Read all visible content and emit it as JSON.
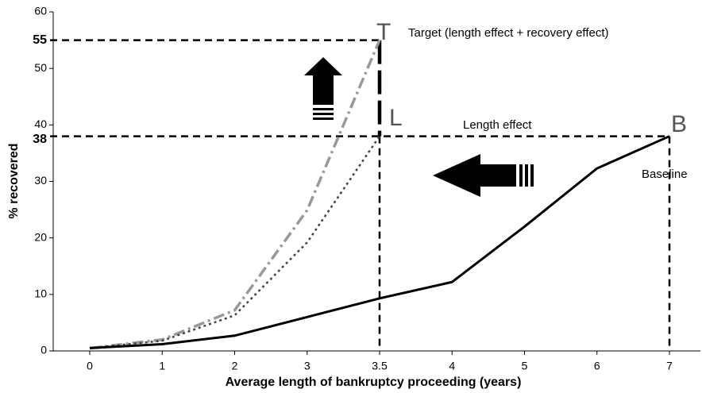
{
  "chart_data": {
    "type": "line",
    "x_label": "Average length of bankruptcy proceeding (years)",
    "y_label": "% recovered",
    "categories": [
      "0",
      "1",
      "2",
      "3",
      "3.5",
      "4",
      "5",
      "6",
      "7"
    ],
    "series": [
      {
        "name": "Baseline",
        "color": "#000000",
        "style": "solid",
        "values": [
          0.5,
          1.2,
          2.7,
          6,
          9.3,
          12.2,
          22,
          32.3,
          38
        ]
      },
      {
        "name": "Length effect",
        "color": "#444444",
        "style": "dotted",
        "values": [
          0.5,
          1.8,
          6.3,
          19.2,
          38,
          null,
          null,
          null,
          null
        ]
      },
      {
        "name": "Target (length effect + recovery effect)",
        "color": "#999999",
        "style": "dashdot",
        "values": [
          0.5,
          2,
          7.2,
          24.9,
          55,
          null,
          null,
          null,
          null
        ]
      }
    ],
    "guides": [
      {
        "value": 55,
        "to": "3.5"
      },
      {
        "value": 38,
        "to": "7"
      }
    ],
    "letters": [
      "T",
      "L",
      "B"
    ],
    "ylim": [
      0,
      60
    ],
    "yticks": [
      0,
      10,
      20,
      30,
      40,
      50,
      60
    ]
  }
}
